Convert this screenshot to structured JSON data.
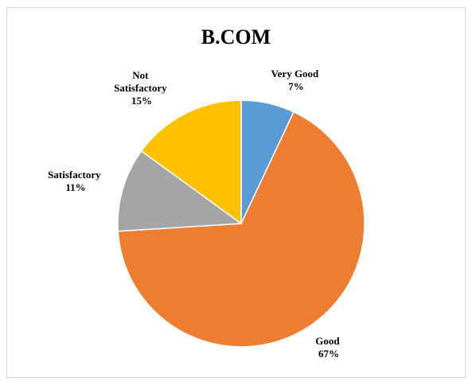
{
  "chart_data": {
    "type": "pie",
    "title": "B.COM",
    "categories": [
      "Very Good",
      "Good",
      "Satisfactory",
      "Not Satisfactory"
    ],
    "values": [
      7,
      67,
      11,
      15
    ],
    "value_labels": [
      "7%",
      "67%",
      "11%",
      "15%"
    ],
    "colors": [
      "#5b9bd5",
      "#ed7d31",
      "#a5a5a5",
      "#ffc000"
    ],
    "start_angle": "12 o'clock",
    "direction": "clockwise",
    "legend": "none",
    "data_labels": "outside-end"
  }
}
